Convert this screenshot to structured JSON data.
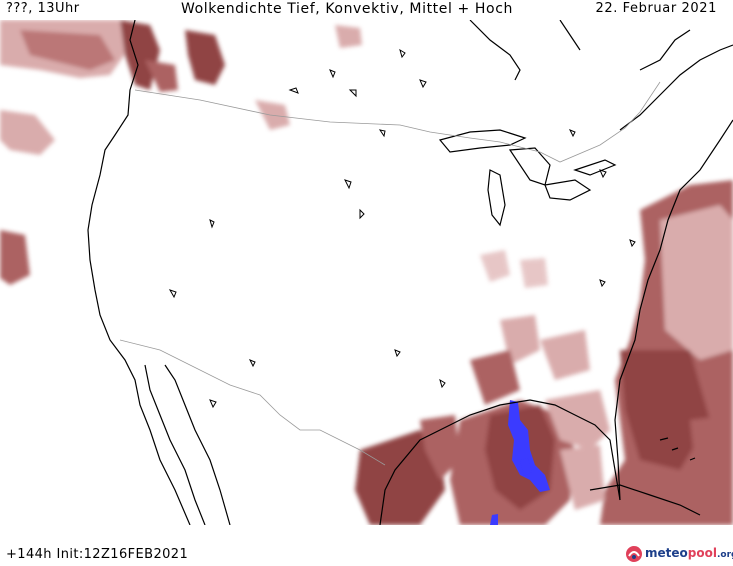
{
  "header": {
    "left": "???, 13Uhr",
    "title": "Wolkendichte  Tief, Konvektiv, Mittel + Hoch",
    "date": "22. Februar 2021"
  },
  "footer": {
    "left": "+144h  Init:12Z16FEB2021"
  },
  "logo": {
    "name_part1": "meteo",
    "name_part2": "pool",
    "tld": ".org",
    "icon": "meteopool-logo-icon"
  },
  "colors": {
    "cloud_dark": "#8b3a3a",
    "cloud_mid": "#a85a5a",
    "cloud_light": "#d8a8a8",
    "convective": "#3b3bff",
    "coast": "#000000",
    "border": "#9a9a9a"
  }
}
